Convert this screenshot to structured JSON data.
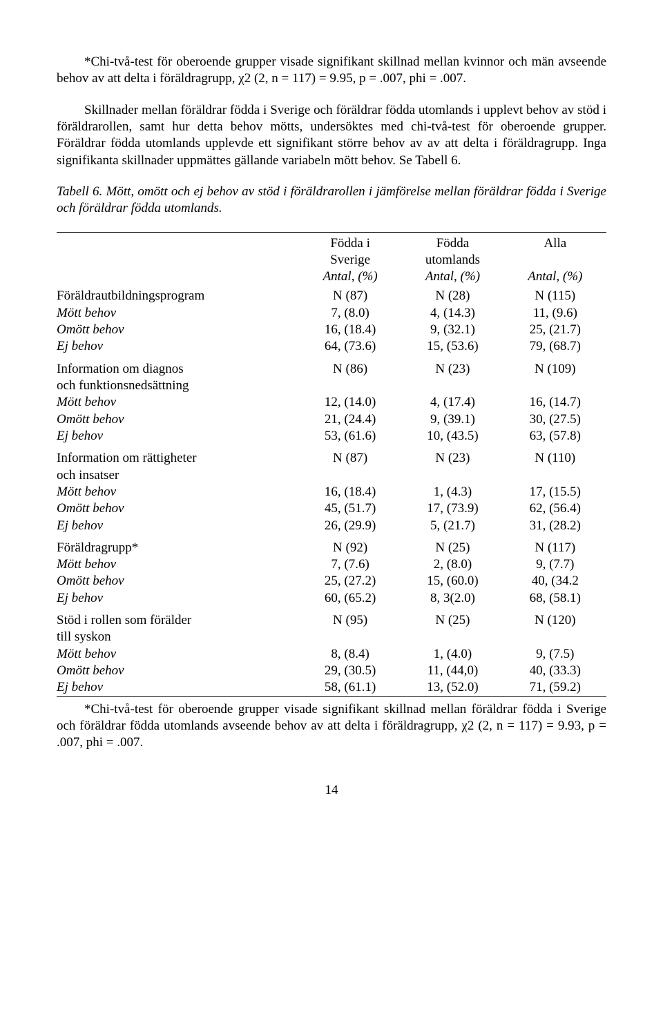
{
  "para1": "*Chi-två-test för oberoende grupper visade signifikant skillnad mellan kvinnor och män avseende behov av att delta i föräldragrupp, χ2 (2, n = 117) = 9.95, p = .007, phi = .007.",
  "para2": "Skillnader mellan föräldrar födda i Sverige och föräldrar födda utomlands i upplevt behov av stöd i föräldrarollen, samt hur detta behov mötts, undersöktes med chi-två-test för oberoende grupper. Föräldrar födda utomlands upplevde ett signifikant större behov av av att delta i föräldragrupp. Inga signifikanta skillnader uppmättes gällande variabeln mött behov. Se Tabell 6.",
  "para3": "Tabell 6. Mött, omött och ej behov av stöd i föräldrarollen i jämförelse mellan föräldrar födda i Sverige och föräldrar födda utomlands.",
  "headers": {
    "c1a": "Födda i",
    "c1b": "Sverige",
    "c2a": "Födda",
    "c2b": "utomlands",
    "c3a": "Alla",
    "sub": "Antal, (%)"
  },
  "labels": {
    "mott": "Mött behov",
    "omott": "Omött behov",
    "ej": "Ej behov"
  },
  "sections": [
    {
      "title": "Föräldrautbildningsprogram",
      "n": [
        "N (87)",
        "N (28)",
        "N (115)"
      ],
      "rows": [
        [
          "7, (8.0)",
          "4, (14.3)",
          "11, (9.6)"
        ],
        [
          "16, (18.4)",
          "9, (32.1)",
          "25, (21.7)"
        ],
        [
          "64, (73.6)",
          "15, (53.6)",
          "79, (68.7)"
        ]
      ]
    },
    {
      "title": "Information om diagnos",
      "title2": "och funktionsnedsättning",
      "n": [
        "N (86)",
        "N (23)",
        "N (109)"
      ],
      "rows": [
        [
          "12, (14.0)",
          "4, (17.4)",
          "16, (14.7)"
        ],
        [
          "21, (24.4)",
          "9, (39.1)",
          "30, (27.5)"
        ],
        [
          "53, (61.6)",
          "10, (43.5)",
          "63, (57.8)"
        ]
      ]
    },
    {
      "title": "Information om rättigheter",
      "title2": "och insatser",
      "n": [
        "N (87)",
        "N (23)",
        "N (110)"
      ],
      "rows": [
        [
          "16, (18.4)",
          "1, (4.3)",
          "17, (15.5)"
        ],
        [
          "45, (51.7)",
          "17, (73.9)",
          "62, (56.4)"
        ],
        [
          "26, (29.9)",
          "5, (21.7)",
          "31, (28.2)"
        ]
      ]
    },
    {
      "title": "Föräldragrupp*",
      "n": [
        "N (92)",
        "N (25)",
        "N (117)"
      ],
      "rows": [
        [
          "7, (7.6)",
          "2, (8.0)",
          "9, (7.7)"
        ],
        [
          "25, (27.2)",
          "15, (60.0)",
          "40, (34.2"
        ],
        [
          "60, (65.2)",
          "8, 3(2.0)",
          "68, (58.1)"
        ]
      ]
    },
    {
      "title": "Stöd i rollen som förälder",
      "title2": "till syskon",
      "n": [
        "N (95)",
        "N (25)",
        "N (120)"
      ],
      "rows": [
        [
          "8, (8.4)",
          "1, (4.0)",
          "9, (7.5)"
        ],
        [
          "29, (30.5)",
          "11, (44,0)",
          "40, (33.3)"
        ],
        [
          "58, (61.1)",
          "13, (52.0)",
          "71, (59.2)"
        ]
      ]
    }
  ],
  "footnote": "*Chi-två-test för oberoende grupper visade signifikant skillnad mellan föräldrar födda i Sverige och föräldrar födda utomlands avseende behov av att delta i föräldragrupp, χ2 (2, n = 117) = 9.93, p = .007, phi = .007.",
  "pagenum": "14"
}
